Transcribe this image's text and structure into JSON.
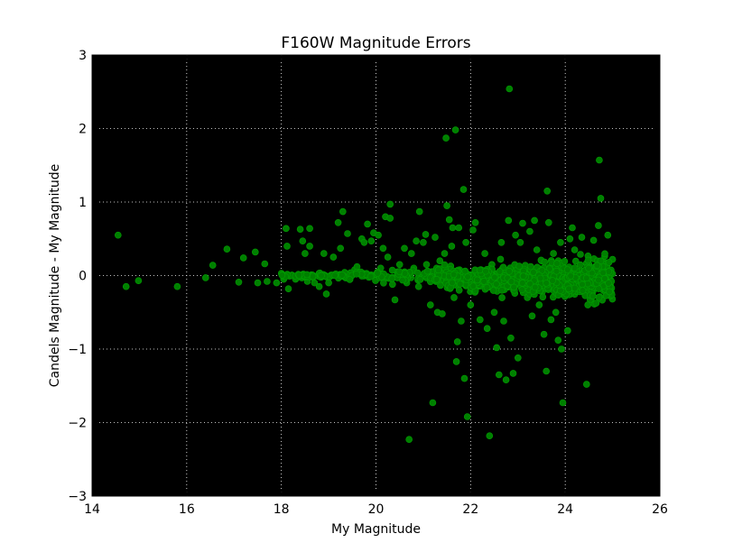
{
  "chart_data": {
    "type": "scatter",
    "title": "F160W Magnitude Errors",
    "xlabel": "My Magnitude",
    "ylabel": "Candels Magnitude - My Magnitude",
    "xlim": [
      14,
      26
    ],
    "ylim": [
      -3,
      3
    ],
    "xticks": [
      14,
      16,
      18,
      20,
      22,
      24,
      26
    ],
    "yticks": [
      -3,
      -2,
      -1,
      0,
      1,
      2,
      3
    ],
    "xtick_labels": [
      "14",
      "16",
      "18",
      "20",
      "22",
      "24",
      "26"
    ],
    "ytick_labels": [
      "−3",
      "−2",
      "−1",
      "0",
      "1",
      "2",
      "3"
    ],
    "grid": true,
    "background": "#000000",
    "marker_color": "#008000",
    "marker_edge_color": "#00a000",
    "series": [
      {
        "points": [
          [
            14.55,
            0.55
          ],
          [
            14.72,
            -0.15
          ],
          [
            14.98,
            -0.07
          ],
          [
            15.8,
            -0.15
          ],
          [
            16.4,
            -0.03
          ],
          [
            16.55,
            0.14
          ],
          [
            16.85,
            0.36
          ],
          [
            17.1,
            -0.09
          ],
          [
            17.2,
            0.24
          ],
          [
            17.45,
            0.32
          ],
          [
            17.5,
            -0.1
          ],
          [
            17.65,
            0.16
          ],
          [
            17.7,
            -0.08
          ],
          [
            17.9,
            -0.1
          ],
          [
            18.0,
            0.03
          ],
          [
            18.05,
            -0.05
          ],
          [
            18.1,
            0.64
          ],
          [
            18.12,
            0.4
          ],
          [
            18.15,
            -0.18
          ],
          [
            18.3,
            -0.05
          ],
          [
            18.4,
            0.63
          ],
          [
            18.45,
            0.47
          ],
          [
            18.5,
            0.3
          ],
          [
            18.6,
            0.64
          ],
          [
            18.55,
            -0.08
          ],
          [
            18.6,
            0.4
          ],
          [
            18.7,
            -0.1
          ],
          [
            18.8,
            -0.15
          ],
          [
            18.9,
            0.3
          ],
          [
            18.95,
            -0.25
          ],
          [
            19.0,
            -0.1
          ],
          [
            19.1,
            0.25
          ],
          [
            19.2,
            0.72
          ],
          [
            19.25,
            0.37
          ],
          [
            19.3,
            0.87
          ],
          [
            19.4,
            0.57
          ],
          [
            19.45,
            -0.05
          ],
          [
            19.55,
            0.08
          ],
          [
            19.6,
            0.12
          ],
          [
            19.7,
            0.5
          ],
          [
            19.75,
            0.45
          ],
          [
            19.82,
            0.7
          ],
          [
            19.9,
            0.47
          ],
          [
            19.95,
            0.58
          ],
          [
            20.0,
            0.0
          ],
          [
            20.05,
            0.55
          ],
          [
            20.1,
            0.1
          ],
          [
            20.15,
            0.37
          ],
          [
            20.2,
            0.8
          ],
          [
            20.25,
            0.25
          ],
          [
            20.3,
            0.78
          ],
          [
            20.3,
            0.97
          ],
          [
            20.35,
            -0.12
          ],
          [
            20.4,
            -0.33
          ],
          [
            20.45,
            0.05
          ],
          [
            20.5,
            0.15
          ],
          [
            20.6,
            0.37
          ],
          [
            20.65,
            -0.1
          ],
          [
            20.7,
            -2.23
          ],
          [
            20.75,
            0.3
          ],
          [
            20.8,
            0.1
          ],
          [
            20.85,
            0.47
          ],
          [
            20.9,
            -0.15
          ],
          [
            20.92,
            0.87
          ],
          [
            21.0,
            0.45
          ],
          [
            21.05,
            0.56
          ],
          [
            21.1,
            0.0
          ],
          [
            21.15,
            -0.4
          ],
          [
            21.2,
            -1.73
          ],
          [
            21.25,
            0.52
          ],
          [
            21.3,
            -0.5
          ],
          [
            21.35,
            0.2
          ],
          [
            21.4,
            -0.52
          ],
          [
            21.45,
            0.3
          ],
          [
            21.48,
            1.87
          ],
          [
            21.5,
            0.95
          ],
          [
            21.55,
            0.76
          ],
          [
            21.6,
            0.4
          ],
          [
            21.62,
            0.65
          ],
          [
            21.65,
            -0.3
          ],
          [
            21.68,
            1.98
          ],
          [
            21.7,
            -1.17
          ],
          [
            21.72,
            -0.9
          ],
          [
            21.75,
            0.65
          ],
          [
            21.8,
            -0.62
          ],
          [
            21.85,
            1.17
          ],
          [
            21.87,
            -1.4
          ],
          [
            21.9,
            0.45
          ],
          [
            21.93,
            -1.92
          ],
          [
            22.0,
            -0.4
          ],
          [
            22.05,
            0.62
          ],
          [
            22.1,
            0.72
          ],
          [
            22.15,
            -0.15
          ],
          [
            22.2,
            -0.6
          ],
          [
            22.3,
            0.3
          ],
          [
            22.35,
            -0.72
          ],
          [
            22.4,
            -2.18
          ],
          [
            22.45,
            0.15
          ],
          [
            22.5,
            -0.5
          ],
          [
            22.55,
            -0.98
          ],
          [
            22.6,
            -1.35
          ],
          [
            22.65,
            0.45
          ],
          [
            22.7,
            -0.62
          ],
          [
            22.75,
            -1.42
          ],
          [
            22.8,
            0.75
          ],
          [
            22.82,
            2.54
          ],
          [
            22.85,
            -0.85
          ],
          [
            22.9,
            -1.33
          ],
          [
            22.95,
            0.55
          ],
          [
            23.0,
            -1.12
          ],
          [
            23.05,
            0.45
          ],
          [
            23.1,
            0.71
          ],
          [
            23.2,
            -0.3
          ],
          [
            23.25,
            0.6
          ],
          [
            23.3,
            -0.55
          ],
          [
            23.35,
            0.75
          ],
          [
            23.4,
            0.35
          ],
          [
            23.45,
            -0.4
          ],
          [
            23.5,
            0.2
          ],
          [
            23.55,
            -0.8
          ],
          [
            23.6,
            -1.3
          ],
          [
            23.62,
            1.15
          ],
          [
            23.65,
            0.72
          ],
          [
            23.7,
            -0.6
          ],
          [
            23.75,
            0.3
          ],
          [
            23.8,
            -0.5
          ],
          [
            23.85,
            -0.88
          ],
          [
            23.9,
            0.45
          ],
          [
            23.92,
            -1.0
          ],
          [
            23.95,
            -1.73
          ],
          [
            24.0,
            0.1
          ],
          [
            24.05,
            -0.75
          ],
          [
            24.1,
            0.5
          ],
          [
            24.15,
            0.65
          ],
          [
            24.2,
            0.35
          ],
          [
            24.3,
            -0.2
          ],
          [
            24.35,
            0.52
          ],
          [
            24.45,
            -1.48
          ],
          [
            24.5,
            0.1
          ],
          [
            24.6,
            0.48
          ],
          [
            24.7,
            0.68
          ],
          [
            24.72,
            1.57
          ],
          [
            24.75,
            1.05
          ],
          [
            24.8,
            0.2
          ],
          [
            24.9,
            0.55
          ],
          [
            24.95,
            -0.13
          ],
          [
            25.0,
            0.22
          ]
        ]
      }
    ]
  }
}
